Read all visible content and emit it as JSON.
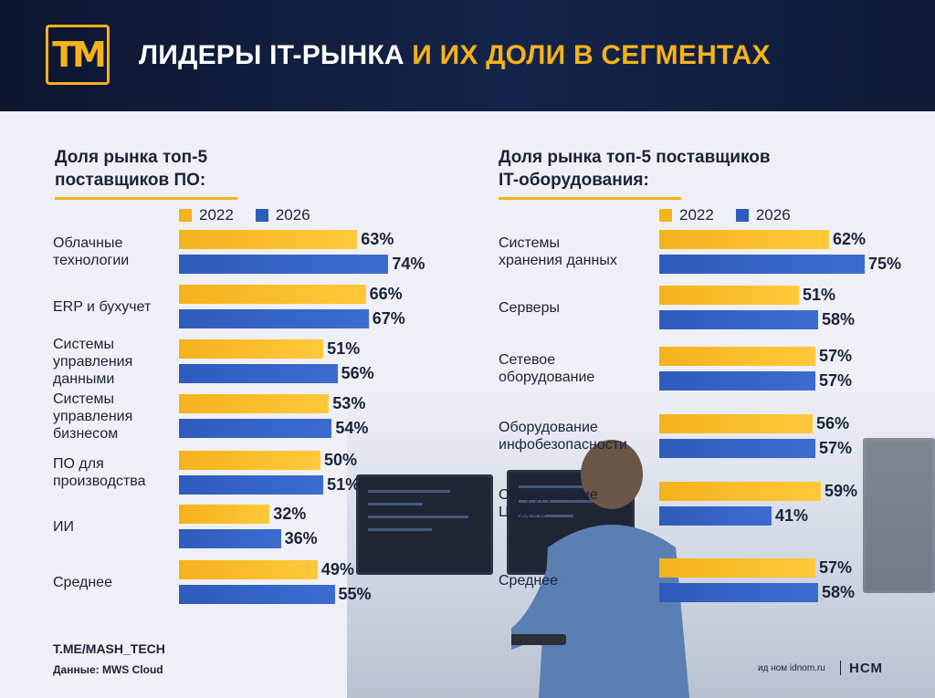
{
  "header": {
    "logo_text": "ТМ",
    "title_white": "ЛИДЕРЫ IT-РЫНКА",
    "title_yellow": " И ИХ ДОЛИ В СЕГМЕНТАХ"
  },
  "colors": {
    "y2022": "#f5b21c",
    "y2026": "#2f5bbd"
  },
  "chart_data": [
    {
      "type": "bar",
      "orientation": "horizontal",
      "title": "Доля рынка топ-5 поставщиков ПО:",
      "legend": [
        "2022",
        "2026"
      ],
      "value_suffix": "%",
      "categories": [
        "Облачные технологии",
        "ERP и бухучет",
        "Системы управления данными",
        "Системы управления бизнесом",
        "ПО для производства",
        "ИИ",
        "Среднее"
      ],
      "series": [
        {
          "name": "2022",
          "values": [
            63,
            66,
            51,
            53,
            50,
            32,
            49
          ]
        },
        {
          "name": "2026",
          "values": [
            74,
            67,
            56,
            54,
            51,
            36,
            55
          ]
        }
      ],
      "xlim": [
        0,
        100
      ]
    },
    {
      "type": "bar",
      "orientation": "horizontal",
      "title": "Доля рынка топ-5 поставщиков IT-оборудования:",
      "legend": [
        "2022",
        "2026"
      ],
      "value_suffix": "%",
      "categories": [
        "Системы хранения данных",
        "Серверы",
        "Сетевое оборудование",
        "Оборудование инфобезопасности",
        "Оборудование ЦОДов",
        "Среднее"
      ],
      "series": [
        {
          "name": "2022",
          "values": [
            62,
            51,
            57,
            56,
            59,
            57
          ]
        },
        {
          "name": "2026",
          "values": [
            75,
            58,
            57,
            57,
            41,
            58
          ]
        }
      ],
      "xlim": [
        0,
        100
      ]
    }
  ],
  "left_title_lines": [
    "Доля рынка топ-5",
    "поставщиков ПО:"
  ],
  "right_title_lines": [
    "Доля рынка топ-5 поставщиков",
    "IT-оборудования:"
  ],
  "left_label_lines": [
    [
      "Облачные",
      "технологии"
    ],
    [
      "ERP и бухучет"
    ],
    [
      "Системы",
      "управления",
      "данными"
    ],
    [
      "Системы",
      "управления",
      "бизнесом"
    ],
    [
      "ПО для",
      "производства"
    ],
    [
      "ИИ"
    ],
    [
      "Среднее"
    ]
  ],
  "right_label_lines": [
    [
      "Системы",
      "хранения данных"
    ],
    [
      "Серверы"
    ],
    [
      "Сетевое",
      "оборудование"
    ],
    [
      "Оборудование",
      "инфобезопасности"
    ],
    [
      "Оборудование",
      "ЦОДов"
    ],
    [
      "Среднее"
    ]
  ],
  "footer": {
    "channel": "T.ME/MASH_TECH",
    "source": "Данные: MWS Cloud",
    "credit": "ид ном idnom.ru",
    "brand": "НСМ"
  }
}
